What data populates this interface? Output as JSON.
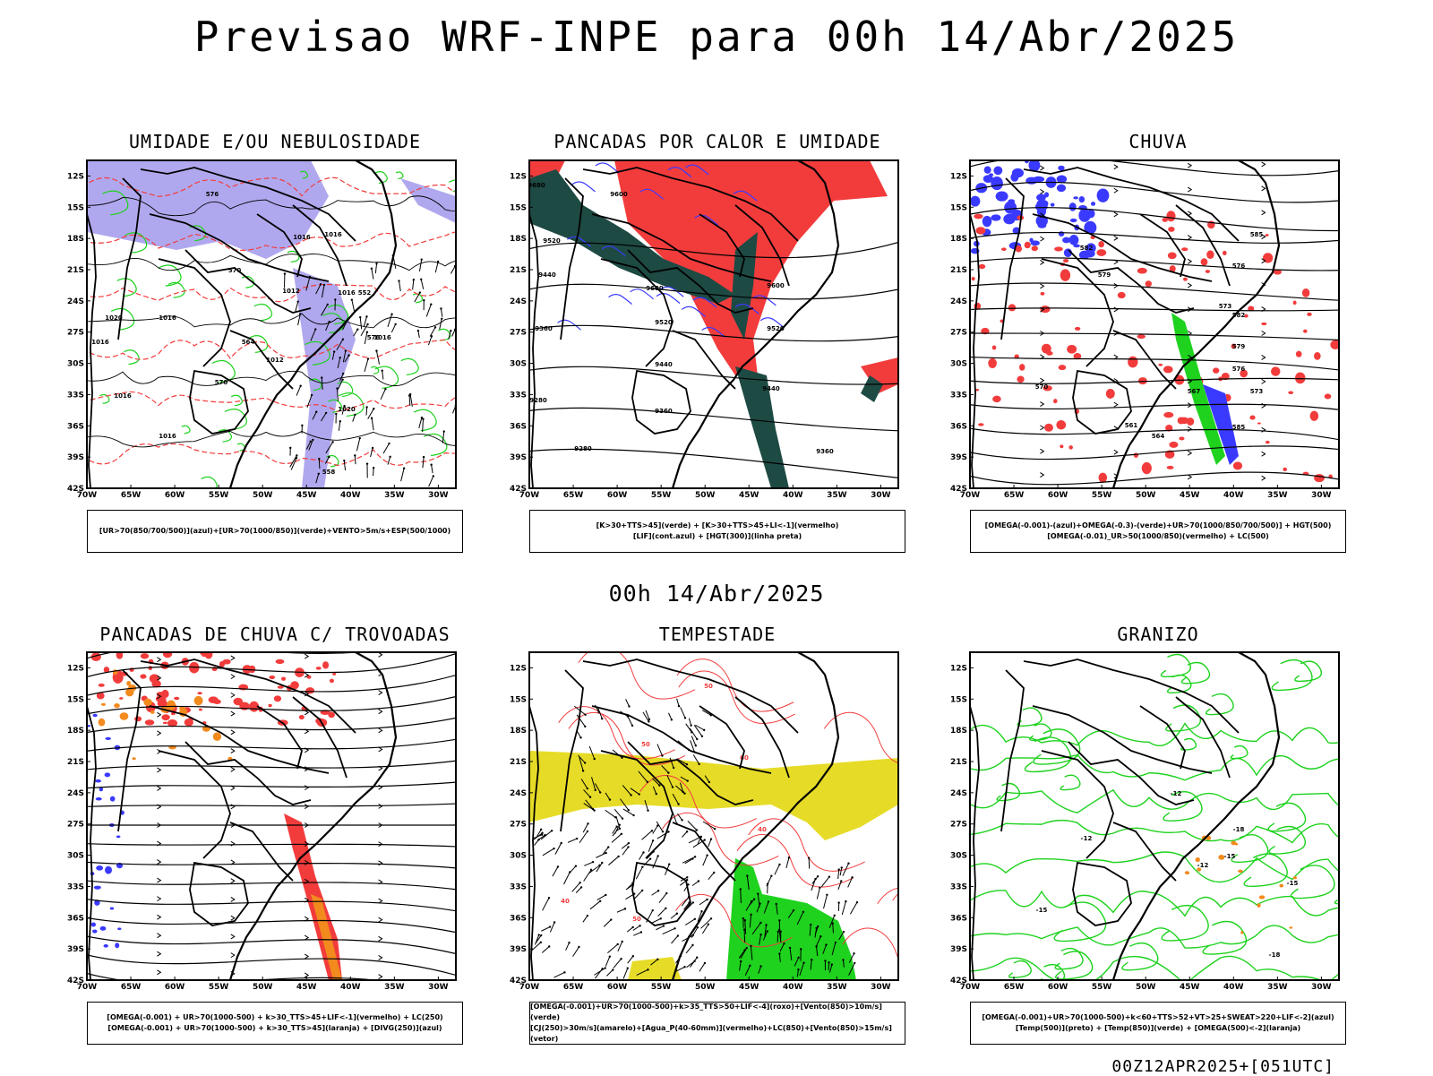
{
  "main_title": "Previsao WRF-INPE  para 00h 14/Abr/2025",
  "mid_time": "00h 14/Abr/2025",
  "footer": "00Z12APR2025+[051UTC]",
  "lat_labels": [
    "12S",
    "15S",
    "18S",
    "21S",
    "24S",
    "27S",
    "30S",
    "33S",
    "36S",
    "39S",
    "42S"
  ],
  "lon_labels": [
    "70W",
    "65W",
    "60W",
    "55W",
    "50W",
    "45W",
    "40W",
    "35W",
    "30W"
  ],
  "colors": {
    "blue": "#3a3aff",
    "lavender": "#b0a8ee",
    "green": "#1ed21e",
    "red": "#f23c3c",
    "dark_teal": "#1e4a44",
    "orange": "#f28a1e",
    "yellow": "#e6dc28",
    "black": "#000000"
  },
  "panels": [
    {
      "title": "UMIDADE E/OU NEBULOSIDADE",
      "legend": [
        "[UR>70(850/700/500)](azul)+[UR>70(1000/850)](verde)+VENTO>5m/s+ESP(500/1000)"
      ],
      "contour_labels": [
        "1016",
        "1016",
        "1016",
        "1012",
        "1020",
        "1016",
        "1016",
        "1012",
        "1016",
        "1020",
        "1016",
        "1016",
        "576",
        "570",
        "564",
        "558",
        "552",
        "576",
        "570"
      ]
    },
    {
      "title": "PANCADAS POR CALOR E UMIDADE",
      "legend": [
        "[K>30+TTS>45](verde)  +  [K>30+TTS>45+LI<-1](vermelho)",
        "[LIF](cont.azul)  +  [HGT(300)](linha preta)"
      ],
      "contour_labels": [
        "9680",
        "9600",
        "9520",
        "9440",
        "9360",
        "9280",
        "9600",
        "9520",
        "9440",
        "9360",
        "9280",
        "9600",
        "9520",
        "9440",
        "9360"
      ]
    },
    {
      "title": "CHUVA",
      "legend": [
        "[OMEGA(-0.001)-(azul)+OMEGA(-0.3)-(verde)+UR>70(1000/850/700/500)]  +  HGT(500)",
        "[OMEGA(-0.01)_UR>50(1000/850)(vermelho)  +  LC(500)"
      ],
      "contour_labels": [
        "585",
        "582",
        "579",
        "576",
        "573",
        "570",
        "567",
        "564",
        "561",
        "585",
        "582",
        "579",
        "576",
        "573"
      ]
    },
    {
      "title": "PANCADAS DE CHUVA C/ TROVOADAS",
      "legend": [
        "[OMEGA(-0.001)  +  UR>70(1000-500)  +  k>30_TTS>45+LIF<-1](vermelho)  +  LC(250)",
        "[OMEGA(-0.001)  +  UR>70(1000-500)  +  k>30_TTS>45](laranja)  +  [DIVG(250)](azul)"
      ],
      "contour_labels": []
    },
    {
      "title": "TEMPESTADE",
      "legend": [
        "[OMEGA(-0.001)+UR>70(1000-500)+k>35_TTS>50+LIF<-4](roxo)+[Vento(850)>10m/s](verde)",
        "[CJ(250)>30m/s](amarelo)+[Agua_P(40-60mm)](vermelho)+LC(850)+[Vento(850)>15m/s](vetor)"
      ],
      "contour_labels": [
        "50",
        "50",
        "60",
        "40",
        "50",
        "40"
      ]
    },
    {
      "title": "GRANIZO",
      "legend": [
        "[OMEGA(-0.001)+UR>70(1000-500)+k<60+TTS>52+VT>25+SWEAT>220+LIF<-2](azul)",
        "[Temp(500)](preto)  +  [Temp(850)](verde)  +  [OMEGA(500)<-2](laranja)"
      ],
      "contour_labels": [
        "-12",
        "-12",
        "-15",
        "-18",
        "-12",
        "-15",
        "-18",
        "-15"
      ]
    }
  ]
}
